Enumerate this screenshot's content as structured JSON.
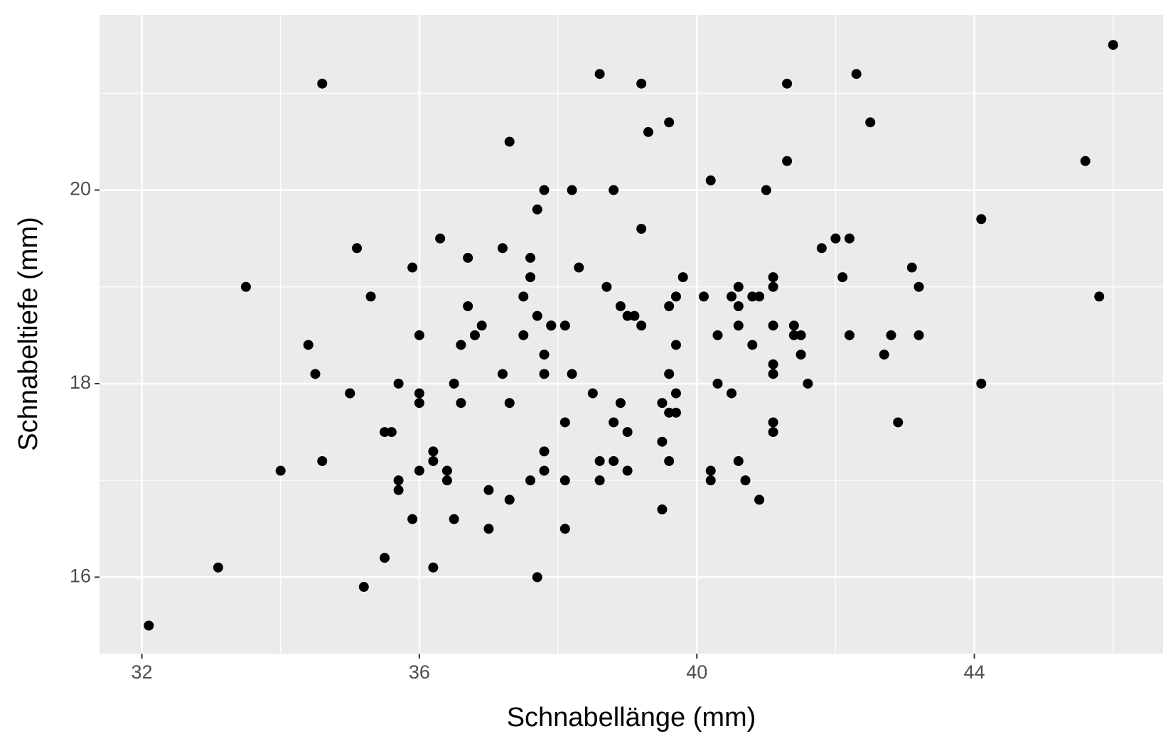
{
  "chart_data": {
    "type": "scatter",
    "x_label": "Schnabellänge (mm)",
    "y_label": "Schnabeltiefe (mm)",
    "color": "#000000",
    "panel_color": "#ebebeb",
    "grid": true,
    "xlim": [
      31.39,
      46.72
    ],
    "ylim": [
      15.21,
      21.81
    ],
    "xticks": [
      32,
      36,
      40,
      44
    ],
    "yticks": [
      16,
      18,
      20
    ],
    "xminor": [
      34,
      38,
      42,
      46
    ],
    "yminor": [
      17,
      19,
      21
    ],
    "x": [
      39.1,
      39.5,
      40.3,
      36.7,
      39.3,
      38.9,
      39.2,
      37.8,
      37.8,
      41.1,
      38.6,
      34.6,
      36.6,
      38.7,
      42.5,
      34.4,
      46.0,
      37.8,
      37.7,
      35.9,
      38.2,
      38.8,
      35.3,
      40.6,
      40.5,
      37.9,
      40.5,
      39.5,
      37.2,
      39.5,
      40.9,
      36.4,
      39.2,
      38.8,
      42.2,
      37.6,
      39.8,
      36.5,
      40.8,
      36.0,
      44.1,
      37.0,
      39.6,
      41.1,
      37.5,
      36.0,
      42.3,
      39.6,
      40.1,
      35.0,
      42.0,
      34.5,
      41.4,
      39.0,
      40.6,
      36.5,
      37.6,
      35.7,
      41.3,
      37.6,
      41.1,
      36.4,
      41.6,
      35.5,
      41.1,
      35.9,
      41.8,
      33.5,
      39.7,
      39.6,
      45.8,
      35.5,
      42.8,
      40.9,
      37.2,
      36.2,
      42.1,
      34.6,
      42.9,
      36.7,
      35.1,
      37.3,
      41.3,
      36.3,
      36.9,
      38.3,
      38.9,
      35.7,
      41.1,
      34.0,
      39.6,
      36.2,
      40.8,
      38.1,
      40.3,
      33.1,
      43.2,
      35.0,
      41.0,
      37.7,
      37.8,
      37.9,
      39.7,
      38.6,
      38.2,
      38.1,
      43.2,
      38.1,
      45.6,
      39.7,
      42.2,
      39.6,
      42.7,
      38.6,
      37.3,
      35.7,
      41.1,
      36.2,
      37.7,
      40.2,
      41.4,
      35.2,
      40.6,
      38.8,
      41.5,
      39.0,
      44.1,
      38.5,
      43.1,
      36.8,
      37.5,
      38.1,
      41.1,
      35.6,
      40.2,
      37.0,
      39.7,
      40.2,
      40.6,
      32.1,
      40.7,
      37.3,
      39.0,
      39.2,
      36.6,
      36.0,
      37.8,
      36.0,
      41.5
    ],
    "y": [
      18.7,
      17.4,
      18.0,
      19.3,
      20.6,
      17.8,
      19.6,
      17.1,
      17.3,
      17.6,
      21.2,
      21.1,
      17.8,
      19.0,
      20.7,
      18.4,
      21.5,
      18.3,
      18.7,
      19.2,
      18.1,
      17.2,
      18.9,
      18.6,
      17.9,
      18.6,
      18.9,
      16.7,
      18.1,
      17.8,
      18.9,
      17.0,
      21.1,
      20.0,
      18.5,
      19.3,
      19.1,
      18.0,
      18.4,
      18.5,
      19.7,
      16.9,
      18.8,
      19.0,
      18.9,
      17.9,
      21.2,
      17.7,
      18.9,
      17.9,
      19.5,
      18.1,
      18.6,
      17.5,
      18.8,
      16.6,
      19.1,
      16.9,
      21.1,
      17.0,
      18.2,
      17.1,
      18.0,
      16.2,
      19.1,
      16.6,
      19.4,
      19.0,
      18.4,
      17.2,
      18.9,
      17.5,
      18.5,
      16.8,
      19.4,
      16.1,
      19.1,
      17.2,
      17.6,
      18.8,
      19.4,
      17.8,
      20.3,
      19.5,
      18.6,
      19.2,
      18.8,
      18.0,
      18.1,
      17.1,
      18.1,
      17.3,
      18.9,
      18.6,
      18.5,
      16.1,
      18.5,
      17.9,
      20.0,
      16.0,
      20.0,
      18.6,
      18.9,
      17.2,
      20.0,
      17.0,
      19.0,
      16.5,
      20.3,
      17.7,
      19.5,
      20.7,
      18.3,
      17.0,
      20.5,
      17.0,
      18.6,
      17.2,
      19.8,
      17.0,
      18.5,
      15.9,
      19.0,
      17.6,
      18.3,
      17.1,
      18.0,
      17.9,
      19.2,
      18.5,
      18.5,
      17.6,
      17.5,
      17.5,
      20.1,
      16.5,
      17.9,
      17.1,
      17.2,
      15.5,
      17.0,
      16.8,
      18.7,
      18.6,
      18.4,
      17.8,
      18.1,
      17.1,
      18.5
    ]
  }
}
